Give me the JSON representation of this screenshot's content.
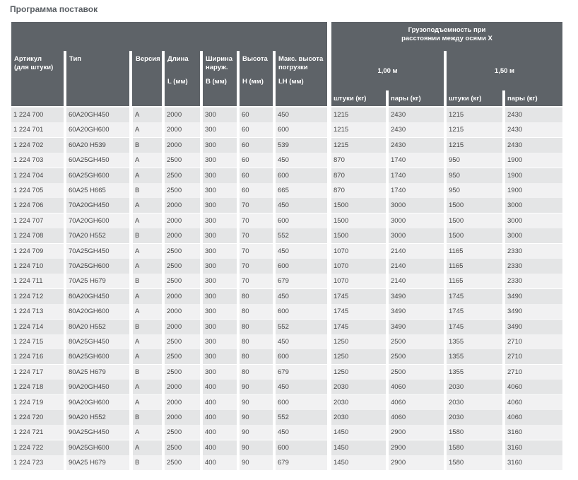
{
  "header": {
    "title": "Программа поставок",
    "columns": [
      {
        "label": "Артикул\n(для штуки)"
      },
      {
        "label": "Тип"
      },
      {
        "label": "Версия"
      },
      {
        "label": "Длина",
        "unit": "L (мм)"
      },
      {
        "label": "Ширина\nнаруж.",
        "unit": "B  (мм)"
      },
      {
        "label": "Высота",
        "unit": "H (мм)"
      },
      {
        "label": "Макс. высота\nпогрузки",
        "unit": "LH (мм)"
      }
    ],
    "group": "Грузоподъемность при\nрасстоянии между осями  X",
    "distances": [
      "1,00 м",
      "1,50 м"
    ],
    "subcolumns": [
      "штуки (кг)",
      "пары (кг)",
      "штуки (кг)",
      "пары (кг)"
    ]
  },
  "table": {
    "rows": [
      [
        "1 224 700",
        "60A20GH450",
        "A",
        "2000",
        "300",
        "60",
        "450",
        "1215",
        "2430",
        "1215",
        "2430"
      ],
      [
        "1 224 701",
        "60A20GH600",
        "A",
        "2000",
        "300",
        "60",
        "600",
        "1215",
        "2430",
        "1215",
        "2430"
      ],
      [
        "1 224 702",
        "60A20 H539",
        "B",
        "2000",
        "300",
        "60",
        "539",
        "1215",
        "2430",
        "1215",
        "2430"
      ],
      [
        "1 224 703",
        "60A25GH450",
        "A",
        "2500",
        "300",
        "60",
        "450",
        "870",
        "1740",
        "950",
        "1900"
      ],
      [
        "1 224 704",
        "60A25GH600",
        "A",
        "2500",
        "300",
        "60",
        "600",
        "870",
        "1740",
        "950",
        "1900"
      ],
      [
        "1 224 705",
        "60A25 H665",
        "B",
        "2500",
        "300",
        "60",
        "665",
        "870",
        "1740",
        "950",
        "1900"
      ],
      [
        "1 224 706",
        "70A20GH450",
        "A",
        "2000",
        "300",
        "70",
        "450",
        "1500",
        "3000",
        "1500",
        "3000"
      ],
      [
        "1 224 707",
        "70A20GH600",
        "A",
        "2000",
        "300",
        "70",
        "600",
        "1500",
        "3000",
        "1500",
        "3000"
      ],
      [
        "1 224 708",
        "70A20 H552",
        "B",
        "2000",
        "300",
        "70",
        "552",
        "1500",
        "3000",
        "1500",
        "3000"
      ],
      [
        "1 224 709",
        "70A25GH450",
        "A",
        "2500",
        "300",
        "70",
        "450",
        "1070",
        "2140",
        "1165",
        "2330"
      ],
      [
        "1 224 710",
        "70A25GH600",
        "A",
        "2500",
        "300",
        "70",
        "600",
        "1070",
        "2140",
        "1165",
        "2330"
      ],
      [
        "1 224 711",
        "70A25 H679",
        "B",
        "2500",
        "300",
        "70",
        "679",
        "1070",
        "2140",
        "1165",
        "2330"
      ],
      [
        "1 224 712",
        "80A20GH450",
        "A",
        "2000",
        "300",
        "80",
        "450",
        "1745",
        "3490",
        "1745",
        "3490"
      ],
      [
        "1 224 713",
        "80A20GH600",
        "A",
        "2000",
        "300",
        "80",
        "600",
        "1745",
        "3490",
        "1745",
        "3490"
      ],
      [
        "1 224 714",
        "80A20 H552",
        "B",
        "2000",
        "300",
        "80",
        "552",
        "1745",
        "3490",
        "1745",
        "3490"
      ],
      [
        "1 224 715",
        "80A25GH450",
        "A",
        "2500",
        "300",
        "80",
        "450",
        "1250",
        "2500",
        "1355",
        "2710"
      ],
      [
        "1 224 716",
        "80A25GH600",
        "A",
        "2500",
        "300",
        "80",
        "600",
        "1250",
        "2500",
        "1355",
        "2710"
      ],
      [
        "1 224 717",
        "80A25 H679",
        "B",
        "2500",
        "300",
        "80",
        "679",
        "1250",
        "2500",
        "1355",
        "2710"
      ],
      [
        "1 224 718",
        "90A20GH450",
        "A",
        "2000",
        "400",
        "90",
        "450",
        "2030",
        "4060",
        "2030",
        "4060"
      ],
      [
        "1 224 719",
        "90A20GH600",
        "A",
        "2000",
        "400",
        "90",
        "600",
        "2030",
        "4060",
        "2030",
        "4060"
      ],
      [
        "1 224 720",
        "90A20 H552",
        "B",
        "2000",
        "400",
        "90",
        "552",
        "2030",
        "4060",
        "2030",
        "4060"
      ],
      [
        "1 224 721",
        "90A25GH450",
        "A",
        "2500",
        "400",
        "90",
        "450",
        "1450",
        "2900",
        "1580",
        "3160"
      ],
      [
        "1 224 722",
        "90A25GH600",
        "A",
        "2500",
        "400",
        "90",
        "600",
        "1450",
        "2900",
        "1580",
        "3160"
      ],
      [
        "1 224 723",
        "90A25 H679",
        "B",
        "2500",
        "400",
        "90",
        "679",
        "1450",
        "2900",
        "1580",
        "3160"
      ]
    ]
  }
}
